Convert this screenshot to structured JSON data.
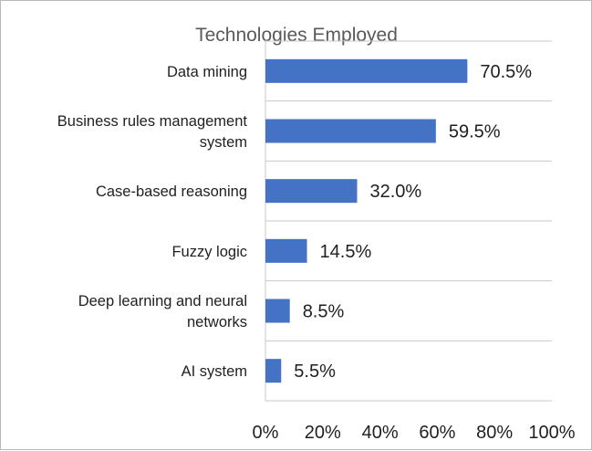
{
  "chart_data": {
    "type": "bar",
    "orientation": "horizontal",
    "title": "Technologies Employed",
    "categories": [
      [
        "Data mining"
      ],
      [
        "Business rules management",
        "system"
      ],
      [
        "Case-based reasoning"
      ],
      [
        "Fuzzy logic"
      ],
      [
        "Deep learning and neural",
        "networks"
      ],
      [
        "AI system"
      ]
    ],
    "values": [
      70.5,
      59.5,
      32.0,
      14.5,
      8.5,
      5.5
    ],
    "value_labels": [
      "70.5%",
      "59.5%",
      "32.0%",
      "14.5%",
      "8.5%",
      "5.5%"
    ],
    "x_ticks": [
      "0%",
      "20%",
      "40%",
      "60%",
      "80%",
      "100%"
    ],
    "xlim": [
      0,
      100
    ],
    "xlabel": "",
    "ylabel": "",
    "grid": "horizontal category separators",
    "legend": "none",
    "bar_color": "#4472c4",
    "grid_color": "#c9c9c9"
  }
}
